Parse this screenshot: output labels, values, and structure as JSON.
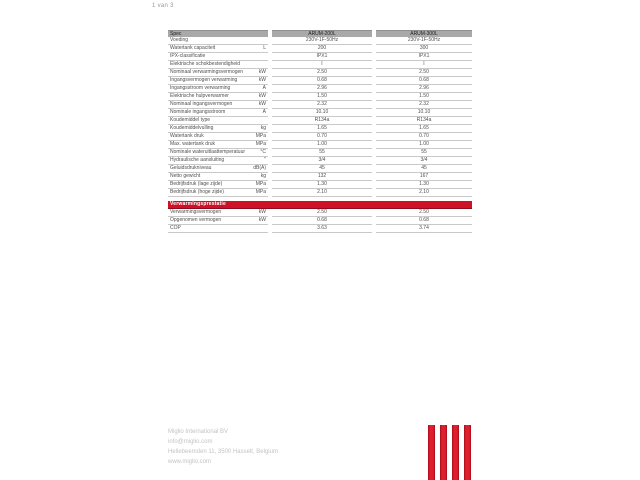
{
  "page": {
    "indicator": "1 van 3"
  },
  "colors": {
    "brand_red": "#ce1126",
    "brand_red_dark": "#8e0b1a",
    "header_gray": "#a9a9a9",
    "row_border_gray": "#c9c9c9",
    "footer_gray": "#c3c3c3"
  },
  "table": {
    "headers": [
      "Spec",
      "ARUM-200L",
      "ARUM-300L"
    ],
    "rows": [
      {
        "label": "Voeding",
        "unit": "",
        "v200": "230V-1F-50Hz",
        "v300": "230V-1F-50Hz"
      },
      {
        "label": "Watertank capaciteit",
        "unit": "L",
        "v200": "200",
        "v300": "300"
      },
      {
        "label": "IPX-classificatie",
        "unit": "",
        "v200": "IPX1",
        "v300": "IPX1"
      },
      {
        "label": "Elektrische schokbestendigheid",
        "unit": "",
        "v200": "I",
        "v300": "I"
      },
      {
        "label": "Nominaal verwarmingsvermogen",
        "unit": "kW",
        "v200": "2.50",
        "v300": "2.50"
      },
      {
        "label": "Ingangsvermogen verwarming",
        "unit": "kW",
        "v200": "0.68",
        "v300": "0.68"
      },
      {
        "label": "Ingangsstroom verwarming",
        "unit": "A",
        "v200": "2.96",
        "v300": "2.96"
      },
      {
        "label": "Elektrische hulpverwarmer",
        "unit": "kW",
        "v200": "1.50",
        "v300": "1.50"
      },
      {
        "label": "Nominaal ingangsvermogen",
        "unit": "kW",
        "v200": "2.32",
        "v300": "2.32"
      },
      {
        "label": "Nominale ingangsstroom",
        "unit": "A",
        "v200": "10.10",
        "v300": "10.10"
      },
      {
        "label": "Koudemiddel type",
        "unit": "",
        "v200": "R134a",
        "v300": "R134a"
      },
      {
        "label": "Koudemiddelvulling",
        "unit": "kg",
        "v200": "1.65",
        "v300": "1.65"
      },
      {
        "label": "Watertank druk",
        "unit": "MPa",
        "v200": "0.70",
        "v300": "0.70"
      },
      {
        "label": "Max. watertank druk",
        "unit": "MPa",
        "v200": "1.00",
        "v300": "1.00"
      },
      {
        "label": "Nominale wateruitlaattemperatuur",
        "unit": "°C",
        "v200": "55",
        "v300": "55"
      },
      {
        "label": "Hydraulische aansluiting",
        "unit": "\"",
        "v200": "3/4",
        "v300": "3/4"
      },
      {
        "label": "Geluidsdrukniveau",
        "unit": "dB(A)",
        "v200": "45",
        "v300": "45"
      },
      {
        "label": "Netto gewicht",
        "unit": "kg",
        "v200": "132",
        "v300": "167"
      },
      {
        "label": "Bedrijfsdruk (lage zijde)",
        "unit": "MPa",
        "v200": "1.30",
        "v300": "1.30"
      },
      {
        "label": "Bedrijfsdruk (hoge zijde)",
        "unit": "MPa",
        "v200": "2.10",
        "v300": "2.10"
      }
    ]
  },
  "heating": {
    "title": "Verwarmingsprestatie",
    "rows": [
      {
        "label": "Verwarmingsvermogen",
        "unit": "kW",
        "v200": "2.50",
        "v300": "2.50"
      },
      {
        "label": "Opgenomen vermogen",
        "unit": "kW",
        "v200": "0.68",
        "v300": "0.68"
      },
      {
        "label": "COP",
        "unit": "",
        "v200": "3.63",
        "v300": "3.74"
      }
    ]
  },
  "footer": {
    "company": "Miglio International BV",
    "email": "info@miglio.com",
    "address": "Hellebeemden 11, 3500 Hasselt, Belgium",
    "website": "www.miglio.com"
  }
}
